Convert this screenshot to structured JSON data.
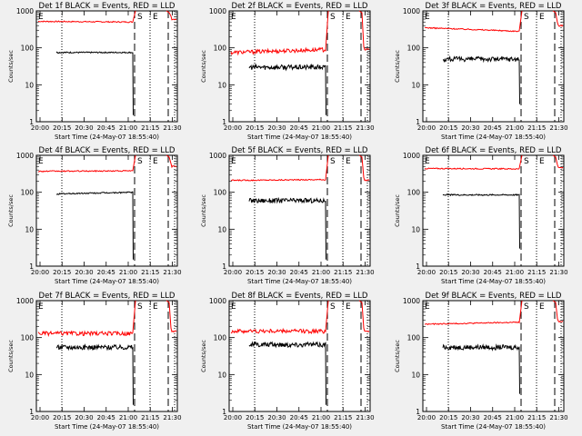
{
  "chart_data": [
    {
      "type": "line",
      "title": "Det 1f BLACK = Events, RED = LLD",
      "xlabel": "Start Time (24-May-07 18:55:40)",
      "ylabel": "Counts/sec",
      "xticks": [
        "20:00",
        "20:15",
        "20:30",
        "20:45",
        "21:00",
        "21:15",
        "21:30"
      ],
      "yticks": [
        "1",
        "10",
        "100",
        "1000"
      ],
      "ylim": [
        1,
        1000
      ],
      "yscale": "log",
      "flags": [
        "E",
        "S",
        "E"
      ],
      "series": [
        {
          "color": "#ff0000",
          "start": 520,
          "end": 500,
          "peak": 1000,
          "after": 600
        },
        {
          "color": "#000000",
          "start": 75,
          "end": 75,
          "drop": 1.5
        }
      ]
    },
    {
      "type": "line",
      "title": "Det 2f BLACK = Events, RED = LLD",
      "xlabel": "Start Time (24-May-07 18:55:40)",
      "ylabel": "Counts/sec",
      "xticks": [
        "20:00",
        "20:15",
        "20:30",
        "20:45",
        "21:00",
        "21:15",
        "21:30"
      ],
      "yticks": [
        "1",
        "10",
        "100",
        "1000"
      ],
      "ylim": [
        1,
        1000
      ],
      "yscale": "log",
      "flags": [
        "E",
        "S",
        "E"
      ],
      "series": [
        {
          "color": "#ff0000",
          "start": 75,
          "end": 90,
          "peak": 1000,
          "after": 90
        },
        {
          "color": "#000000",
          "start": 30,
          "end": 30,
          "drop": 1.5
        }
      ]
    },
    {
      "type": "line",
      "title": "Det 3f BLACK = Events, RED = LLD",
      "xlabel": "Start Time (24-May-07 18:55:40)",
      "ylabel": "Counts/sec",
      "xticks": [
        "20:00",
        "20:15",
        "20:30",
        "20:45",
        "21:00",
        "21:15",
        "21:30"
      ],
      "yticks": [
        "1",
        "10",
        "100",
        "1000"
      ],
      "ylim": [
        1,
        1000
      ],
      "yscale": "log",
      "flags": [
        "E",
        "S",
        "E"
      ],
      "series": [
        {
          "color": "#ff0000",
          "start": 350,
          "end": 280,
          "peak": 1000,
          "after": 400
        },
        {
          "color": "#000000",
          "start": 50,
          "end": 50,
          "drop": 3
        }
      ]
    },
    {
      "type": "line",
      "title": "Det 4f BLACK = Events, RED = LLD",
      "xlabel": "Start Time (24-May-07 18:55:40)",
      "ylabel": "Counts/sec",
      "xticks": [
        "20:00",
        "20:15",
        "20:30",
        "20:45",
        "21:00",
        "21:15",
        "21:30"
      ],
      "yticks": [
        "1",
        "10",
        "100",
        "1000"
      ],
      "ylim": [
        1,
        1000
      ],
      "yscale": "log",
      "flags": [
        "E",
        "S",
        "E"
      ],
      "series": [
        {
          "color": "#ff0000",
          "start": 370,
          "end": 380,
          "peak": 1000,
          "after": 500
        },
        {
          "color": "#000000",
          "start": 90,
          "end": 100,
          "drop": 1.5
        }
      ]
    },
    {
      "type": "line",
      "title": "Det 5f BLACK = Events, RED = LLD",
      "xlabel": "Start Time (24-May-07 18:55:40)",
      "ylabel": "Counts/sec",
      "xticks": [
        "20:00",
        "20:15",
        "20:30",
        "20:45",
        "21:00",
        "21:15",
        "21:30"
      ],
      "yticks": [
        "1",
        "10",
        "100",
        "1000"
      ],
      "ylim": [
        1,
        1000
      ],
      "yscale": "log",
      "flags": [
        "E",
        "S",
        "E"
      ],
      "series": [
        {
          "color": "#ff0000",
          "start": 210,
          "end": 220,
          "peak": 1000,
          "after": 210
        },
        {
          "color": "#000000",
          "start": 60,
          "end": 60,
          "drop": 1.5
        }
      ]
    },
    {
      "type": "line",
      "title": "Det 6f BLACK = Events, RED = LLD",
      "xlabel": "Start Time (24-May-07 18:55:40)",
      "ylabel": "Counts/sec",
      "xticks": [
        "20:00",
        "20:15",
        "20:30",
        "20:45",
        "21:00",
        "21:15",
        "21:30"
      ],
      "yticks": [
        "1",
        "10",
        "100",
        "1000"
      ],
      "ylim": [
        1,
        1000
      ],
      "yscale": "log",
      "flags": [
        "E",
        "S",
        "E"
      ],
      "series": [
        {
          "color": "#ff0000",
          "start": 440,
          "end": 430,
          "peak": 1000,
          "after": 460
        },
        {
          "color": "#000000",
          "start": 85,
          "end": 85,
          "drop": 3
        }
      ]
    },
    {
      "type": "line",
      "title": "Det 7f BLACK = Events, RED = LLD",
      "xlabel": "Start Time (24-May-07 18:55:40)",
      "ylabel": "Counts/sec",
      "xticks": [
        "20:00",
        "20:15",
        "20:30",
        "20:45",
        "21:00",
        "21:15",
        "21:30"
      ],
      "yticks": [
        "1",
        "10",
        "100",
        "1000"
      ],
      "ylim": [
        1,
        1000
      ],
      "yscale": "log",
      "flags": [
        "E",
        "S",
        "E"
      ],
      "series": [
        {
          "color": "#ff0000",
          "start": 130,
          "end": 130,
          "peak": 1000,
          "after": 150
        },
        {
          "color": "#000000",
          "start": 55,
          "end": 55,
          "drop": 1.5
        }
      ]
    },
    {
      "type": "line",
      "title": "Det 8f BLACK = Events, RED = LLD",
      "xlabel": "Start Time (24-May-07 18:55:40)",
      "ylabel": "Counts/sec",
      "xticks": [
        "20:00",
        "20:15",
        "20:30",
        "20:45",
        "21:00",
        "21:15",
        "21:30"
      ],
      "yticks": [
        "1",
        "10",
        "100",
        "1000"
      ],
      "ylim": [
        1,
        1000
      ],
      "yscale": "log",
      "flags": [
        "E",
        "S",
        "E"
      ],
      "series": [
        {
          "color": "#ff0000",
          "start": 150,
          "end": 150,
          "peak": 1000,
          "after": 150
        },
        {
          "color": "#000000",
          "start": 65,
          "end": 65,
          "drop": 1.5
        }
      ]
    },
    {
      "type": "line",
      "title": "Det 9f BLACK = Events, RED = LLD",
      "xlabel": "Start Time (24-May-07 18:55:40)",
      "ylabel": "Counts/sec",
      "xticks": [
        "20:00",
        "20:15",
        "20:30",
        "20:45",
        "21:00",
        "21:15",
        "21:30"
      ],
      "yticks": [
        "1",
        "10",
        "100",
        "1000"
      ],
      "ylim": [
        1,
        1000
      ],
      "yscale": "log",
      "flags": [
        "E",
        "S",
        "E"
      ],
      "series": [
        {
          "color": "#ff0000",
          "start": 230,
          "end": 260,
          "peak": 1000,
          "after": 270
        },
        {
          "color": "#000000",
          "start": 55,
          "end": 55,
          "drop": 3
        }
      ]
    }
  ]
}
